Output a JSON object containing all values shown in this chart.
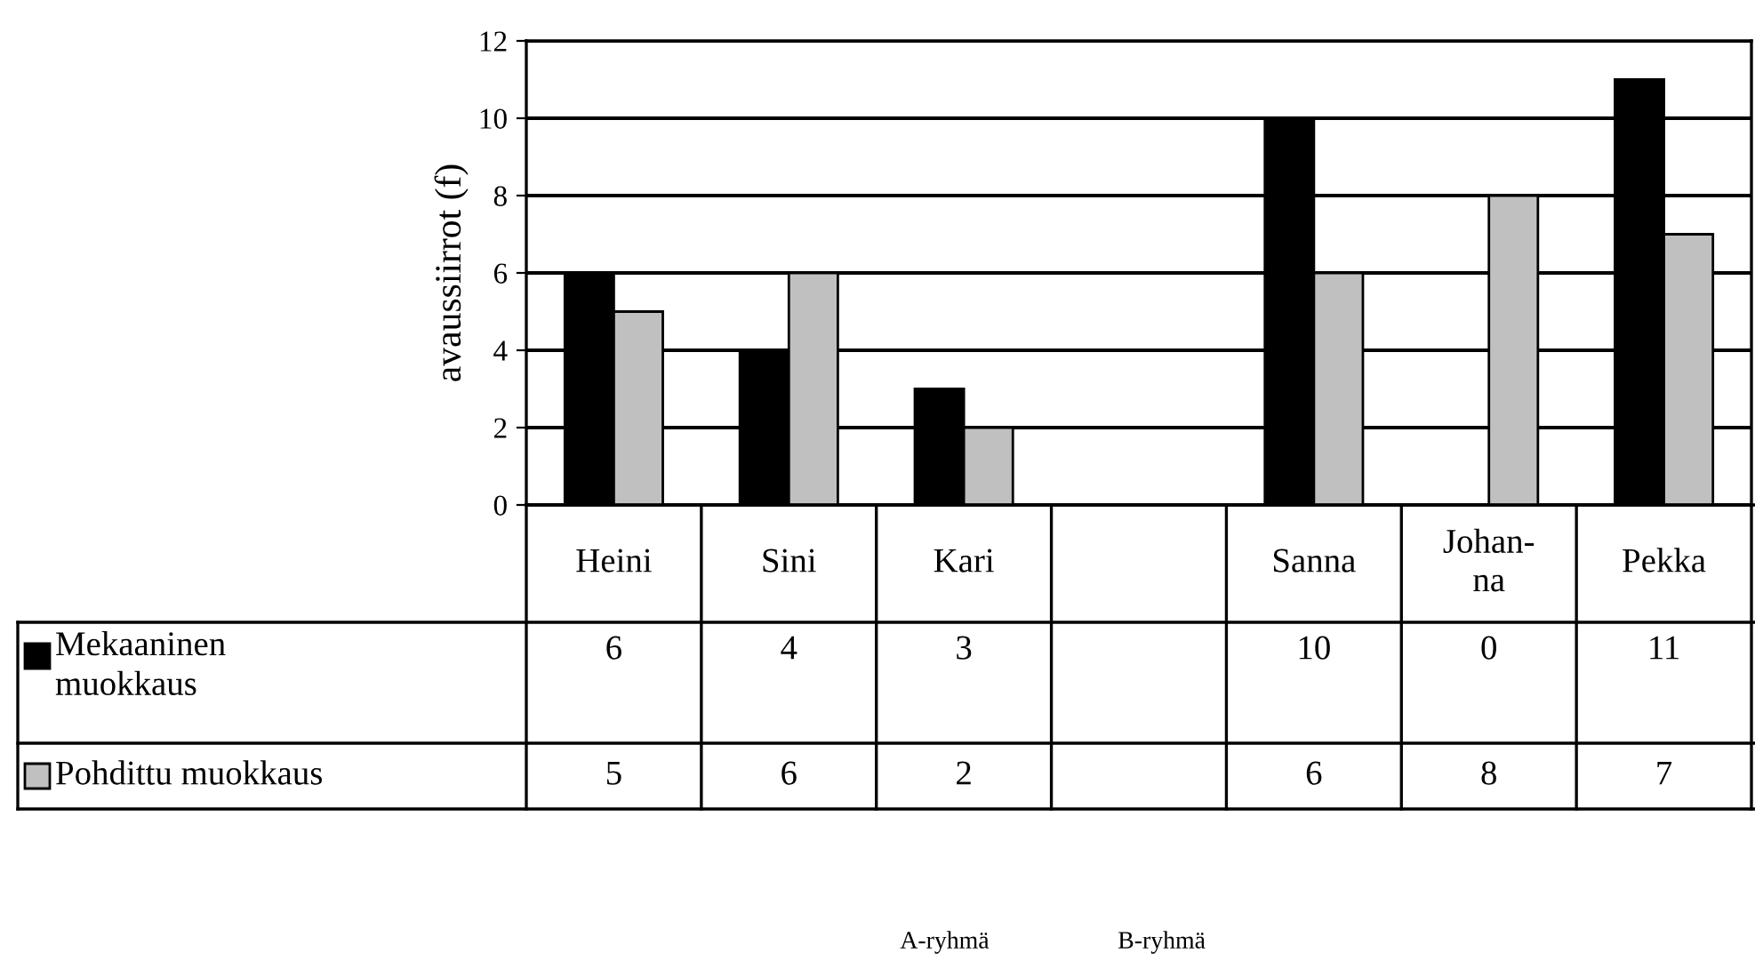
{
  "chart_data": {
    "type": "bar",
    "ylabel": "avaussiirrot (f)",
    "categories": [
      "Heini",
      "Sini",
      "Kari",
      null,
      "Sanna",
      "Johan-\nna",
      "Pekka"
    ],
    "series": [
      {
        "name": "Mekaaninen muokkaus",
        "color": "#000000",
        "values": [
          6,
          4,
          3,
          null,
          10,
          0,
          11
        ]
      },
      {
        "name": "Pohdittu muokkaus",
        "color": "#c0c0c0",
        "values": [
          5,
          6,
          2,
          null,
          6,
          8,
          7
        ]
      }
    ],
    "ylim": [
      0,
      12
    ],
    "yticks": [
      0,
      2,
      4,
      6,
      8,
      10,
      12
    ],
    "grid": "y",
    "legend": "left",
    "data_labels": true,
    "annotations": [
      "A-ryhmä",
      "B-ryhmä"
    ]
  }
}
